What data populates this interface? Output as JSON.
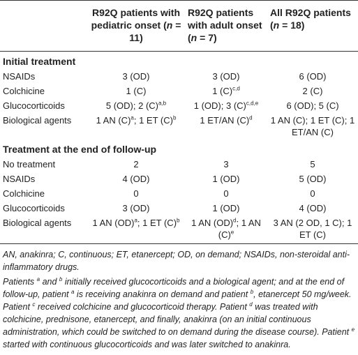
{
  "table": {
    "header": [
      "",
      [
        "R92Q patients with pediatric onset (",
        {
          "i": "n"
        },
        " = 11)"
      ],
      [
        "R92Q patients with adult onset (",
        {
          "i": "n"
        },
        " = 7)"
      ],
      [
        "All R92Q patients (",
        {
          "i": "n"
        },
        " = 18)"
      ]
    ],
    "sections": [
      {
        "title": "Initial treatment",
        "rows": [
          [
            "NSAIDs",
            "3 (OD)",
            "3 (OD)",
            "6 (OD)"
          ],
          [
            "Colchicine",
            "1 (C)",
            [
              "1 (C)",
              {
                "sup": "c,d"
              }
            ],
            "2 (C)"
          ],
          [
            "Glucocorticoids",
            [
              "5 (OD); 2 (C)",
              {
                "sup": "a,b"
              }
            ],
            [
              "1 (OD); 3 (C)",
              {
                "sup": "c,d,e"
              }
            ],
            "6 (OD); 5 (C)"
          ],
          [
            "Biological agents",
            [
              "1 AN (C)",
              {
                "sup": "a"
              },
              "; 1 ET (C)",
              {
                "sup": "b"
              }
            ],
            [
              "1 ET/AN (C)",
              {
                "sup": "d"
              }
            ],
            "1 AN (C); 1 ET (C); 1 ET/AN (C)"
          ]
        ]
      },
      {
        "title": "Treatment at the end of follow-up",
        "rows": [
          [
            "No treatment",
            "2",
            "3",
            "5"
          ],
          [
            "NSAIDs",
            "4 (OD)",
            "1 (OD)",
            "5 (OD)"
          ],
          [
            "Colchicine",
            "0",
            "0",
            "0"
          ],
          [
            "Glucocorticoids",
            "3 (OD)",
            "1 (OD)",
            "4 (OD)"
          ],
          [
            "Biological agents",
            [
              "1 AN (OD)",
              {
                "sup": "a"
              },
              "; 1 ET (C)",
              {
                "sup": "b"
              }
            ],
            [
              "1 AN (OD)",
              {
                "sup": "d"
              },
              "; 1 AN (C)",
              {
                "sup": "e"
              }
            ],
            "3 AN (2 OD, 1 C); 1 ET (C)"
          ]
        ]
      }
    ]
  },
  "footnotes": [
    "AN, anakinra; C, continuous; ET, etanercept; OD, on demand; NSAIDs, non-steroidal anti-inflammatory drugs.",
    [
      "Patients ",
      {
        "sup": "a"
      },
      " and ",
      {
        "sup": "b"
      },
      " initially received glucocorticoids and a biological agent; and at the end of follow-up, patient ",
      {
        "sup": "a"
      },
      " is receiving anakinra on demand and patient ",
      {
        "sup": "b"
      },
      ", etanercept 50 mg/week. Patient ",
      {
        "sup": "c"
      },
      " received colchicine and glucocorticoid therapy. Patient ",
      {
        "sup": "d"
      },
      " was treated with colchicine, prednisone, etanercept, and finally, anakinra (on an initial continuous administration, which could be switched to on demand during the disease course). Patient ",
      {
        "sup": "e"
      },
      " started with continuous glucocorticoids and was later switched to anakinra."
    ]
  ]
}
